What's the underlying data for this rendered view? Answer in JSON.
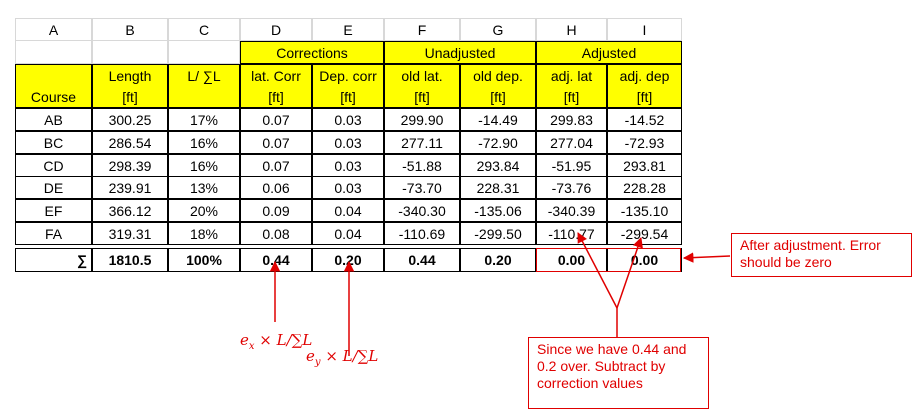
{
  "columns": [
    "A",
    "B",
    "C",
    "D",
    "E",
    "F",
    "G",
    "H",
    "I"
  ],
  "groups": {
    "corrections": "Corrections",
    "unadjusted": "Unadjusted",
    "adjusted": "Adjusted"
  },
  "headers": {
    "course": "Course",
    "length": "Length",
    "length_unit": "[ft]",
    "ratio": "L/ ∑L",
    "lat_corr": "lat. Corr",
    "lat_corr_unit": "[ft]",
    "dep_corr": "Dep. corr",
    "dep_corr_unit": "[ft]",
    "old_lat": "old lat.",
    "old_lat_unit": "[ft]",
    "old_dep": "old dep.",
    "old_dep_unit": "[ft]",
    "adj_lat": "adj. lat",
    "adj_lat_unit": "[ft]",
    "adj_dep": "adj. dep",
    "adj_dep_unit": "[ft]"
  },
  "rows": [
    [
      "AB",
      "300.25",
      "17%",
      "0.07",
      "0.03",
      "299.90",
      "-14.49",
      "299.83",
      "-14.52"
    ],
    [
      "BC",
      "286.54",
      "16%",
      "0.07",
      "0.03",
      "277.11",
      "-72.90",
      "277.04",
      "-72.93"
    ],
    [
      "CD",
      "298.39",
      "16%",
      "0.07",
      "0.03",
      "-51.88",
      "293.84",
      "-51.95",
      "293.81"
    ],
    [
      "DE",
      "239.91",
      "13%",
      "0.06",
      "0.03",
      "-73.70",
      "228.31",
      "-73.76",
      "228.28"
    ],
    [
      "EF",
      "366.12",
      "20%",
      "0.09",
      "0.04",
      "-340.30",
      "-135.06",
      "-340.39",
      "-135.10"
    ],
    [
      "FA",
      "319.31",
      "18%",
      "0.08",
      "0.04",
      "-110.69",
      "-299.50",
      "-110.77",
      "-299.54"
    ]
  ],
  "totals": [
    "∑",
    "1810.5",
    "100%",
    "0.44",
    "0.20",
    "0.44",
    "0.20",
    "0.00",
    "0.00"
  ],
  "annotations": {
    "formula_x": "eₓ × L/∑L",
    "formula_y": "e_y × L/∑L",
    "note_adjustment": "After adjustment. Error should be zero",
    "note_subtract": "Since we have 0.44 and 0.2 over. Subtract by correction values"
  },
  "colors": {
    "header_fill": "#ffff00",
    "annotation": "#e00000"
  }
}
